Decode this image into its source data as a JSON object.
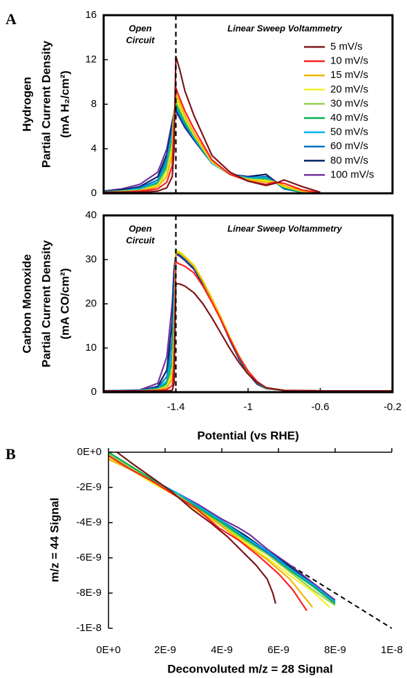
{
  "chart_data": [
    {
      "type": "line",
      "panel_label": "A",
      "ylabel": [
        "Hydrogen",
        "Partial Current Density",
        "(mA H₂/cm²)"
      ],
      "open_circuit_label": [
        "Open",
        "Circuit"
      ],
      "sweep_label": "Linear Sweep Voltammetry",
      "vline": -1.4,
      "xlim": [
        -1.8,
        -0.2
      ],
      "ylim": [
        0,
        16
      ],
      "yticks": [
        0,
        4,
        8,
        12,
        16
      ],
      "legend": "upper right",
      "frame": true,
      "x": [
        -1.8,
        -1.7,
        -1.6,
        -1.5,
        -1.45,
        -1.42,
        -1.41,
        -1.4,
        -1.38,
        -1.35,
        -1.3,
        -1.2,
        -1.1,
        -1.0,
        -0.9,
        -0.85,
        -0.8,
        -0.7,
        -0.6
      ],
      "series": [
        {
          "name": "5 mV/s",
          "color": "#7b1416",
          "values": [
            0.1,
            0.1,
            0.1,
            0.2,
            0.5,
            1.5,
            4.0,
            12.3,
            11.2,
            9.2,
            7.0,
            3.4,
            1.9,
            1.1,
            0.7,
            0.9,
            1.2,
            0.6,
            0.1
          ]
        },
        {
          "name": "10 mV/s",
          "color": "#ff1f1f",
          "values": [
            0.1,
            0.1,
            0.2,
            0.4,
            1.0,
            2.5,
            6.0,
            9.5,
            8.6,
            7.4,
            5.8,
            3.0,
            1.7,
            1.1,
            0.8,
            1.0,
            0.9,
            0.3,
            0.05
          ]
        },
        {
          "name": "15 mV/s",
          "color": "#f2b400",
          "values": [
            0.1,
            0.1,
            0.2,
            0.6,
            1.5,
            3.5,
            7.0,
            9.0,
            8.2,
            7.0,
            5.4,
            2.9,
            1.7,
            1.2,
            1.0,
            1.0,
            0.7,
            0.2,
            0.05
          ]
        },
        {
          "name": "20 mV/s",
          "color": "#f5f020",
          "values": [
            0.1,
            0.1,
            0.2,
            0.7,
            1.8,
            4.0,
            7.2,
            8.6,
            7.9,
            6.8,
            5.3,
            2.8,
            1.7,
            1.2,
            1.1,
            1.0,
            0.6,
            0.2,
            0.05
          ]
        },
        {
          "name": "30 mV/s",
          "color": "#92d050",
          "values": [
            0.1,
            0.2,
            0.3,
            0.8,
            2.2,
            4.6,
            7.3,
            8.3,
            7.6,
            6.6,
            5.2,
            2.8,
            1.7,
            1.3,
            1.2,
            1.0,
            0.6,
            0.15,
            0.05
          ]
        },
        {
          "name": "40 mV/s",
          "color": "#00b050",
          "values": [
            0.1,
            0.2,
            0.3,
            0.9,
            2.5,
            5.0,
            7.3,
            8.1,
            7.4,
            6.4,
            5.1,
            2.8,
            1.7,
            1.3,
            1.3,
            1.0,
            0.5,
            0.1,
            0.05
          ]
        },
        {
          "name": "50 mV/s",
          "color": "#00b0f0",
          "values": [
            0.1,
            0.2,
            0.4,
            1.0,
            2.8,
            5.4,
            7.3,
            7.9,
            7.2,
            6.3,
            5.0,
            2.7,
            1.7,
            1.4,
            1.4,
            1.0,
            0.5,
            0.1,
            0.05
          ]
        },
        {
          "name": "60 mV/s",
          "color": "#0070c0",
          "values": [
            0.2,
            0.2,
            0.5,
            1.2,
            3.1,
            5.8,
            7.3,
            7.7,
            7.0,
            6.1,
            4.9,
            2.7,
            1.7,
            1.4,
            1.5,
            1.0,
            0.4,
            0.1,
            0.05
          ]
        },
        {
          "name": "80 mV/s",
          "color": "#002060",
          "values": [
            0.2,
            0.3,
            0.6,
            1.5,
            3.5,
            6.2,
            7.3,
            7.5,
            6.9,
            6.0,
            4.8,
            2.7,
            1.7,
            1.5,
            1.7,
            1.0,
            0.4,
            0.1,
            0.05
          ]
        },
        {
          "name": "100 mV/s",
          "color": "#7030a0",
          "values": [
            0.2,
            0.4,
            0.8,
            1.9,
            4.0,
            6.5,
            7.2,
            7.3,
            6.8,
            5.9,
            4.8,
            2.7,
            1.7,
            1.5,
            1.7,
            1.1,
            0.4,
            0.1,
            0.05
          ]
        }
      ]
    },
    {
      "type": "line",
      "ylabel": [
        "Carbon Monoxide",
        "Partial Current Density",
        "(mA CO/cm²)"
      ],
      "open_circuit_label": [
        "Open",
        "Circuit"
      ],
      "sweep_label": "Linear Sweep Voltammetry",
      "vline": -1.4,
      "xlim": [
        -1.8,
        -0.2
      ],
      "ylim": [
        0,
        40
      ],
      "yticks": [
        0,
        10,
        20,
        30,
        40
      ],
      "xticks": [
        -1.4,
        -1.0,
        -0.6,
        -0.2
      ],
      "xlabel": "Potential (vs RHE)",
      "frame": true,
      "x": [
        -1.8,
        -1.6,
        -1.5,
        -1.45,
        -1.42,
        -1.41,
        -1.4,
        -1.38,
        -1.35,
        -1.3,
        -1.25,
        -1.2,
        -1.15,
        -1.1,
        -1.05,
        -1.0,
        -0.95,
        -0.9,
        -0.8,
        -0.6,
        -0.4,
        -0.2
      ],
      "series": [
        {
          "color": "#7b1416",
          "values": [
            0.3,
            0.3,
            0.3,
            0.3,
            0.4,
            2.0,
            24.5,
            24.5,
            24.0,
            22.5,
            20.0,
            16.8,
            13.3,
            9.8,
            6.7,
            4.1,
            2.2,
            1.0,
            0.4,
            0.3,
            0.3,
            0.3
          ]
        },
        {
          "color": "#ff1f1f",
          "values": [
            0.3,
            0.3,
            0.4,
            0.6,
            1.5,
            6.0,
            29.5,
            29.0,
            28.5,
            27.0,
            24.0,
            20.3,
            16.3,
            12.0,
            8.0,
            4.8,
            2.4,
            1.0,
            0.4,
            0.3,
            0.3,
            0.3
          ]
        },
        {
          "color": "#f2b400",
          "values": [
            0.3,
            0.3,
            0.5,
            1.0,
            3.0,
            10.0,
            31.5,
            31.5,
            30.5,
            28.5,
            25.0,
            21.0,
            16.8,
            12.3,
            8.2,
            4.8,
            2.3,
            1.0,
            0.4,
            0.3,
            0.3,
            0.3
          ]
        },
        {
          "color": "#f5f020",
          "values": [
            0.3,
            0.3,
            0.5,
            1.2,
            4.0,
            12.0,
            32.0,
            31.8,
            30.8,
            28.8,
            25.3,
            21.2,
            17.0,
            12.4,
            8.2,
            4.8,
            2.3,
            0.9,
            0.4,
            0.3,
            0.3,
            0.3
          ]
        },
        {
          "color": "#92d050",
          "values": [
            0.3,
            0.3,
            0.6,
            1.5,
            5.0,
            14.0,
            32.0,
            31.5,
            30.5,
            28.6,
            25.2,
            21.2,
            16.9,
            12.3,
            8.1,
            4.7,
            2.2,
            0.9,
            0.4,
            0.3,
            0.3,
            0.3
          ]
        },
        {
          "color": "#00b050",
          "values": [
            0.3,
            0.3,
            0.7,
            2.0,
            7.0,
            17.0,
            32.2,
            31.6,
            30.6,
            28.6,
            25.1,
            21.0,
            16.8,
            12.2,
            8.0,
            4.6,
            2.1,
            0.9,
            0.4,
            0.3,
            0.3,
            0.3
          ]
        },
        {
          "color": "#00b0f0",
          "values": [
            0.3,
            0.4,
            0.8,
            2.5,
            9.0,
            20.0,
            32.0,
            31.8,
            30.8,
            28.7,
            25.2,
            21.1,
            16.8,
            12.2,
            8.0,
            4.6,
            2.1,
            0.9,
            0.4,
            0.3,
            0.3,
            0.3
          ]
        },
        {
          "color": "#0070c0",
          "values": [
            0.3,
            0.4,
            1.0,
            3.5,
            12.0,
            23.0,
            31.8,
            31.2,
            30.2,
            28.2,
            24.8,
            20.8,
            16.6,
            12.0,
            7.8,
            4.4,
            2.0,
            0.8,
            0.4,
            0.3,
            0.3,
            0.3
          ]
        },
        {
          "color": "#002060",
          "values": [
            0.3,
            0.4,
            1.3,
            5.0,
            16.0,
            26.0,
            31.5,
            31.0,
            30.0,
            28.0,
            24.6,
            20.6,
            16.4,
            11.8,
            7.6,
            4.3,
            1.9,
            0.8,
            0.4,
            0.3,
            0.3,
            0.3
          ]
        },
        {
          "color": "#7030a0",
          "values": [
            0.3,
            0.5,
            2.0,
            8.0,
            20.0,
            28.0,
            31.2,
            30.8,
            29.8,
            27.8,
            24.4,
            20.5,
            16.3,
            11.7,
            7.5,
            4.2,
            1.8,
            0.8,
            0.4,
            0.3,
            0.3,
            0.3
          ]
        }
      ]
    },
    {
      "type": "line",
      "panel_label": "B",
      "ylabel": "m/z = 44 Signal",
      "xlabel": "Deconvoluted m/z = 28 Signal",
      "frame": false,
      "xlim": [
        0,
        1e-08
      ],
      "ylim": [
        -1e-08,
        0
      ],
      "xticks": [
        {
          "value": 0,
          "label": "0E+0"
        },
        {
          "value": 2e-09,
          "label": "2E-9"
        },
        {
          "value": 4e-09,
          "label": "4E-9"
        },
        {
          "value": 6e-09,
          "label": "6E-9"
        },
        {
          "value": 8e-09,
          "label": "8E-9"
        },
        {
          "value": 1e-08,
          "label": "1E-8"
        }
      ],
      "yticks": [
        {
          "value": 0,
          "label": "0E+0"
        },
        {
          "value": -2e-09,
          "label": "-2E-9"
        },
        {
          "value": -4e-09,
          "label": "-4E-9"
        },
        {
          "value": -6e-09,
          "label": "-6E-9"
        },
        {
          "value": -8e-09,
          "label": "-8E-9"
        },
        {
          "value": -1e-08,
          "label": "-1E-8"
        }
      ],
      "reference_line": {
        "x": [
          0,
          1e-08
        ],
        "y": [
          0,
          -1e-08
        ]
      },
      "series": [
        {
          "color": "#7b1416",
          "x": [
            3e-10,
            8e-10,
            1.5e-09,
            2.2e-09,
            3e-09,
            3.6e-09,
            4.2e-09,
            4.7e-09,
            5.2e-09,
            5.6e-09,
            5.8e-09,
            5.9e-09
          ],
          "values": [
            0,
            -6e-10,
            -1.4e-09,
            -2.2e-09,
            -3.3e-09,
            -4e-09,
            -4.8e-09,
            -5.6e-09,
            -6.4e-09,
            -7.2e-09,
            -8e-09,
            -8.6e-09
          ]
        },
        {
          "color": "#ff1f1f",
          "x": [
            0,
            7e-10,
            1.5e-09,
            2.3e-09,
            3.1e-09,
            3.9e-09,
            4.6e-09,
            5.3e-09,
            6e-09,
            6.5e-09,
            7e-09
          ],
          "values": [
            -2e-10,
            -9e-10,
            -1.6e-09,
            -2.4e-09,
            -3.2e-09,
            -4.3e-09,
            -5e-09,
            -5.9e-09,
            -6.9e-09,
            -7.8e-09,
            -9e-09
          ]
        },
        {
          "color": "#f2b400",
          "x": [
            0,
            8e-10,
            1.6e-09,
            2.4e-09,
            3.2e-09,
            4e-09,
            4.8e-09,
            5.6e-09,
            6.4e-09,
            7.2e-09
          ],
          "values": [
            -4e-10,
            -1e-09,
            -1.7e-09,
            -2.5e-09,
            -3.3e-09,
            -4.2e-09,
            -5.2e-09,
            -6.1e-09,
            -7.2e-09,
            -8.8e-09
          ]
        },
        {
          "color": "#f5f020",
          "x": [
            0,
            8e-10,
            1.6e-09,
            2.4e-09,
            3.2e-09,
            4e-09,
            4.8e-09,
            5.6e-09,
            6.4e-09,
            7.2e-09,
            7.8e-09
          ],
          "values": [
            -3e-10,
            -1e-09,
            -1.8e-09,
            -2.5e-09,
            -3.4e-09,
            -4.2e-09,
            -5.1e-09,
            -6e-09,
            -7e-09,
            -7.9e-09,
            -8.8e-09
          ]
        },
        {
          "color": "#92d050",
          "x": [
            0,
            8e-10,
            1.6e-09,
            2.4e-09,
            3.2e-09,
            4e-09,
            4.8e-09,
            5.6e-09,
            6.4e-09,
            7.2e-09,
            8e-09
          ],
          "values": [
            -1e-10,
            -9e-10,
            -1.7e-09,
            -2.4e-09,
            -3.3e-09,
            -4.1e-09,
            -5e-09,
            -5.8e-09,
            -6.8e-09,
            -7.8e-09,
            -8.7e-09
          ]
        },
        {
          "color": "#00b050",
          "x": [
            0,
            8e-10,
            1.6e-09,
            2.4e-09,
            3.2e-09,
            4e-09,
            4.8e-09,
            5.6e-09,
            6.4e-09,
            7.2e-09,
            8e-09
          ],
          "values": [
            0,
            -8e-10,
            -1.6e-09,
            -2.4e-09,
            -3.2e-09,
            -4e-09,
            -4.9e-09,
            -5.8e-09,
            -6.7e-09,
            -7.6e-09,
            -8.6e-09
          ]
        },
        {
          "color": "#00b0f0",
          "x": [
            0,
            8e-10,
            1.6e-09,
            2.4e-09,
            3.2e-09,
            4e-09,
            4.8e-09,
            5.6e-09,
            6.4e-09,
            7.2e-09,
            8e-09
          ],
          "values": [
            -2e-10,
            -9e-10,
            -1.6e-09,
            -2.3e-09,
            -3.1e-09,
            -3.9e-09,
            -4.8e-09,
            -5.6e-09,
            -6.6e-09,
            -7.5e-09,
            -8.5e-09
          ]
        },
        {
          "color": "#0070c0",
          "x": [
            0,
            8e-10,
            1.6e-09,
            2.4e-09,
            3.2e-09,
            4e-09,
            4.8e-09,
            5.6e-09,
            6.4e-09,
            7.2e-09,
            8e-09
          ],
          "values": [
            -3e-10,
            -9e-10,
            -1.7e-09,
            -2.4e-09,
            -3.2e-09,
            -4e-09,
            -4.8e-09,
            -5.7e-09,
            -6.6e-09,
            -7.6e-09,
            -8.6e-09
          ]
        },
        {
          "color": "#002060",
          "x": [
            0,
            8e-10,
            1.6e-09,
            2.4e-09,
            3.2e-09,
            4e-09,
            4.8e-09,
            5.6e-09,
            6.4e-09,
            7.2e-09,
            8e-09
          ],
          "values": [
            -2e-10,
            -1e-09,
            -1.7e-09,
            -2.4e-09,
            -3.1e-09,
            -3.9e-09,
            -4.7e-09,
            -5.6e-09,
            -6.5e-09,
            -7.5e-09,
            -8.5e-09
          ]
        },
        {
          "color": "#7030a0",
          "x": [
            0,
            8e-10,
            1.6e-09,
            2.4e-09,
            3.2e-09,
            4e-09,
            4.6e-09,
            5e-09,
            5.6e-09,
            6.4e-09,
            7.2e-09,
            8e-09
          ],
          "values": [
            -3e-10,
            -1e-09,
            -1.7e-09,
            -2.3e-09,
            -3e-09,
            -3.8e-09,
            -4.3e-09,
            -4.7e-09,
            -5.5e-09,
            -6.4e-09,
            -7.4e-09,
            -8.4e-09
          ]
        }
      ]
    }
  ]
}
